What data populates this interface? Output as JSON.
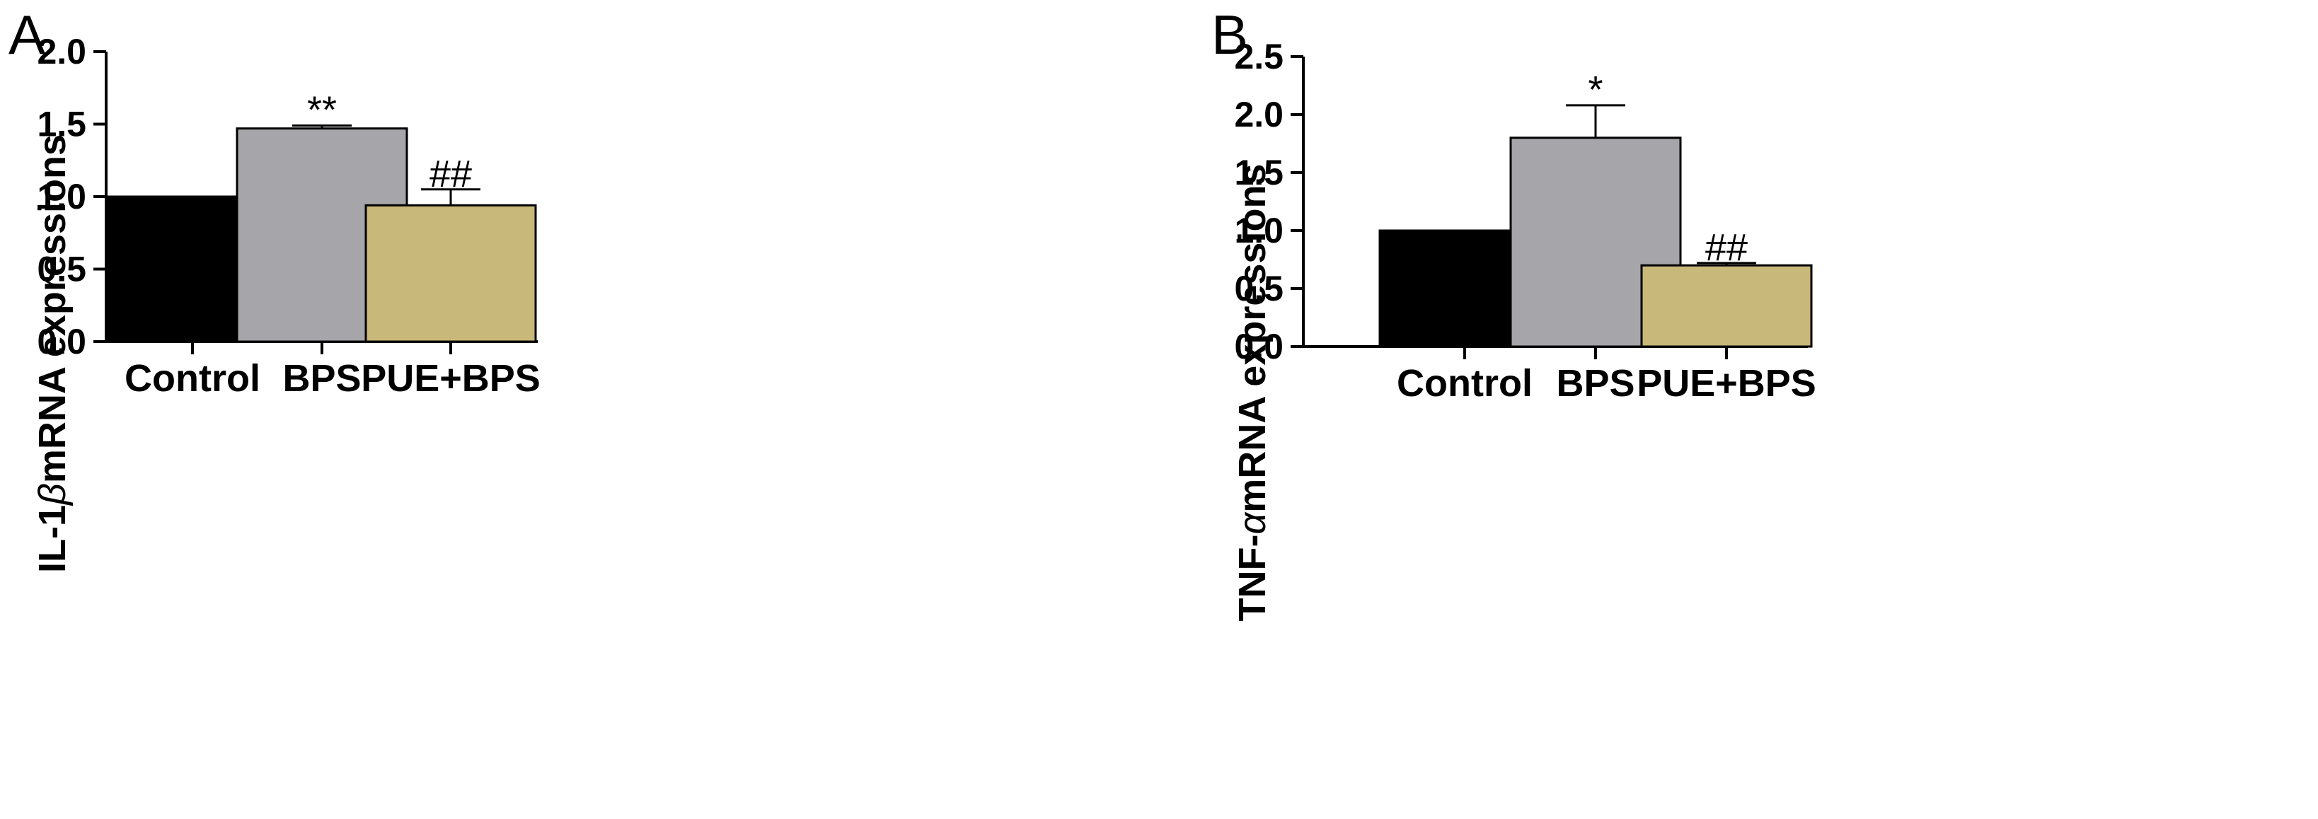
{
  "chart_data": [
    {
      "type": "bar",
      "panel": "A",
      "title": "",
      "ylabel_prefix": "IL-1",
      "ylabel_greek": "β",
      "ylabel_suffix": "mRNA expressions",
      "xlabel": "",
      "categories": [
        "Control",
        "BPS",
        "PUE+BPS"
      ],
      "values": [
        1.0,
        1.47,
        0.94
      ],
      "errors": [
        0.0,
        0.02,
        0.11
      ],
      "annotations": [
        "",
        "**",
        "##"
      ],
      "colors": [
        "#000000",
        "#a6a6aa",
        "#c8b87a"
      ],
      "ylim": [
        0,
        2.0
      ],
      "yticks": [
        0.0,
        0.5,
        1.0,
        1.5,
        2.0
      ],
      "ytick_labels": [
        "0.0",
        "0.5",
        "1.0",
        "1.5",
        "2.0"
      ]
    },
    {
      "type": "bar",
      "panel": "B",
      "title": "",
      "ylabel_prefix": "TNF-",
      "ylabel_greek": "α",
      "ylabel_suffix": "mRNA expressions",
      "xlabel": "",
      "categories": [
        "Control",
        "BPS",
        "PUE+BPS"
      ],
      "values": [
        1.0,
        1.8,
        0.7
      ],
      "errors": [
        0.0,
        0.28,
        0.02
      ],
      "annotations": [
        "",
        "*",
        "##"
      ],
      "colors": [
        "#000000",
        "#a6a6aa",
        "#c8b87a"
      ],
      "ylim": [
        0,
        2.5
      ],
      "yticks": [
        0.0,
        0.5,
        1.0,
        1.5,
        2.0,
        2.5
      ],
      "ytick_labels": [
        "0.0",
        "0.5",
        "1.0",
        "1.5",
        "2.0",
        "2.5"
      ]
    }
  ]
}
